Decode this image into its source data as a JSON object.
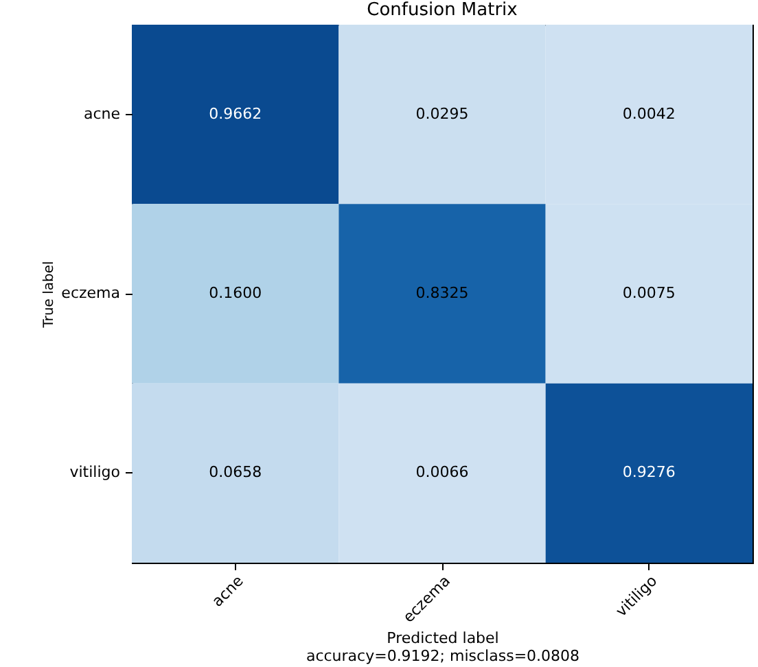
{
  "chart_data": {
    "type": "heatmap",
    "title": "Confusion Matrix",
    "xlabel": "Predicted label",
    "ylabel": "True label",
    "annotations": [
      "accuracy=0.9192; misclass=0.0808"
    ],
    "categories": [
      "acne",
      "eczema",
      "vitiligo"
    ],
    "y_categories": [
      "acne",
      "eczema",
      "vitiligo"
    ],
    "cells": [
      [
        0.9662,
        0.0295,
        0.0042
      ],
      [
        0.16,
        0.8325,
        0.0075
      ],
      [
        0.0658,
        0.0066,
        0.9276
      ]
    ],
    "cell_labels": [
      [
        "0.9662",
        "0.0295",
        "0.0042"
      ],
      [
        "0.1600",
        "0.8325",
        "0.0075"
      ],
      [
        "0.0658",
        "0.0066",
        "0.9276"
      ]
    ],
    "grid": false
  }
}
